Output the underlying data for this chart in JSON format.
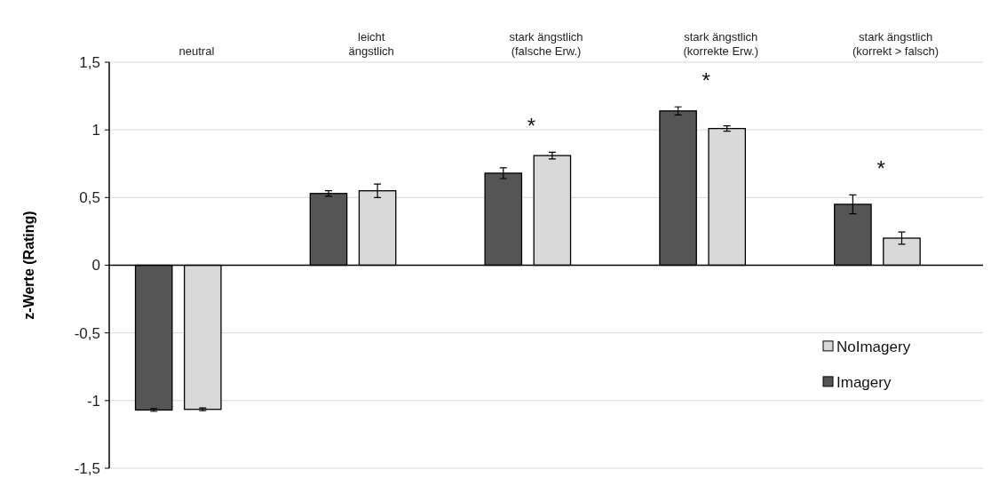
{
  "chart_data": {
    "type": "bar",
    "ylabel": "z-Werte (Rating)",
    "categories": [
      "neutral",
      "leicht\nängstlich",
      "stark ängstlich\n(falsche Erw.)",
      "stark ängstlich\n(korrekte Erw.)",
      "stark ängstlich\n(korrekt > falsch)"
    ],
    "series": [
      {
        "name": "Imagery",
        "color": "#555555",
        "values": [
          -1.07,
          0.53,
          0.68,
          1.14,
          0.45
        ],
        "errors": [
          0.01,
          0.02,
          0.04,
          0.03,
          0.07
        ]
      },
      {
        "name": "NoImagery",
        "color": "#d9d9d9",
        "values": [
          -1.065,
          0.55,
          0.81,
          1.01,
          0.2
        ],
        "errors": [
          0.01,
          0.05,
          0.025,
          0.02,
          0.045
        ]
      }
    ],
    "ylim": [
      -1.5,
      1.5
    ],
    "yticks": [
      {
        "value": -1.5,
        "label": "-1,5"
      },
      -1,
      {
        "value": -0.5,
        "label": "-0,5"
      },
      0,
      {
        "value": 0.5,
        "label": "0,5"
      },
      1,
      {
        "value": 1.5,
        "label": "1,5"
      }
    ],
    "grid": "y",
    "legend": "bottom right",
    "annotations": [
      "*",
      "*",
      "*"
    ]
  }
}
